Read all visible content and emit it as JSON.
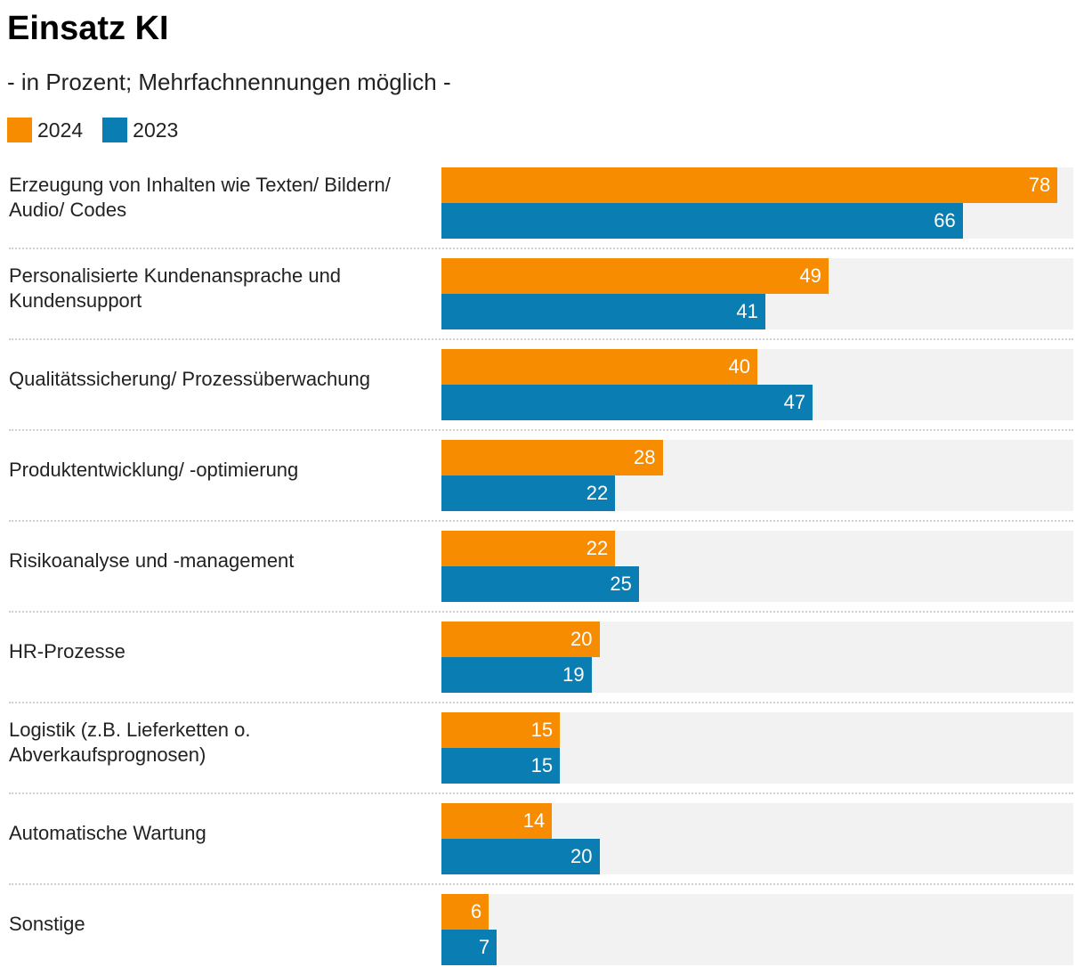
{
  "header": {
    "title": "Einsatz KI",
    "subtitle": "- in Prozent; Mehrfachnennungen möglich -"
  },
  "legend": [
    {
      "label": "2024",
      "color": "#f78c00"
    },
    {
      "label": "2023",
      "color": "#0a7db3"
    }
  ],
  "chart_data": {
    "type": "bar",
    "orientation": "horizontal",
    "title": "Einsatz KI",
    "subtitle": "- in Prozent; Mehrfachnennungen möglich -",
    "xlim": [
      0,
      80
    ],
    "grid": false,
    "legend_position": "top-left",
    "categories": [
      "Erzeugung von Inhalten wie Texten/ Bildern/ Audio/ Codes",
      "Personalisierte Kundenansprache und Kundensupport",
      "Qualitätssicherung/ Prozessüberwachung",
      "Produktentwicklung/ -optimierung",
      "Risikoanalyse und -management",
      "HR-Prozesse",
      "Logistik (z.B. Lieferketten o. Abverkaufsprognosen)",
      "Automatische Wartung",
      "Sonstige"
    ],
    "series": [
      {
        "name": "2024",
        "color": "#f78c00",
        "values": [
          78,
          49,
          40,
          28,
          22,
          20,
          15,
          14,
          6
        ]
      },
      {
        "name": "2023",
        "color": "#0a7db3",
        "values": [
          66,
          41,
          47,
          22,
          25,
          19,
          15,
          20,
          7
        ]
      }
    ]
  }
}
